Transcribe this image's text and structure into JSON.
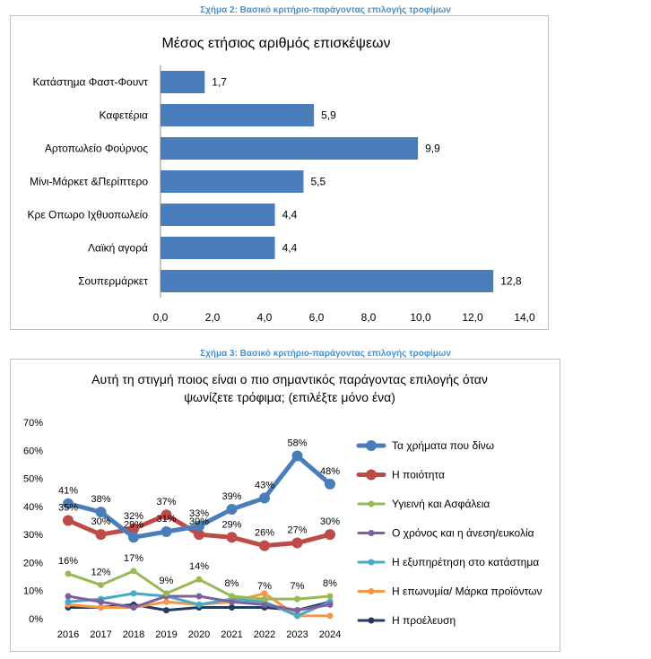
{
  "figure1": {
    "caption": "Σχήμα 2: Βασικό κριτήριο-παράγοντας επιλογής τροφίμων",
    "chart_data": {
      "type": "bar",
      "orientation": "horizontal",
      "title": "Μέσος ετήσιος αριθμός επισκέψεων",
      "categories": [
        "Κατάστημα Φαστ-Φουντ",
        "Καφετέρια",
        "Αρτοπωλείο Φούρνος",
        "Μίνι-Μάρκετ &Περίπτερο",
        "Κρε Οπωρο Ιχθυοπωλείο",
        "Λαϊκή αγορά",
        "Σουπερμάρκετ"
      ],
      "values": [
        1.7,
        5.9,
        9.9,
        5.5,
        4.4,
        4.4,
        12.8
      ],
      "value_labels": [
        "1,7",
        "5,9",
        "9,9",
        "5,5",
        "4,4",
        "4,4",
        "12,8"
      ],
      "xlim": [
        0,
        14
      ],
      "xticks": [
        0,
        2,
        4,
        6,
        8,
        10,
        12,
        14
      ],
      "xtick_labels": [
        "0,0",
        "2,0",
        "4,0",
        "6,0",
        "8,0",
        "10,0",
        "12,0",
        "14,0"
      ],
      "bar_color": "#4a7ebb",
      "grid": false
    }
  },
  "figure2": {
    "caption": "Σχήμα 3: Βασικό κριτήριο-παράγοντας επιλογής τροφίμων",
    "chart_data": {
      "type": "line",
      "title_lines": [
        "Αυτή τη στιγμή ποιος είναι ο πιο σημαντικός παράγοντας επιλογής όταν",
        "ψωνίζετε τρόφιμα; (επιλέξτε μόνο ένα)"
      ],
      "x": [
        "2016",
        "2017",
        "2018",
        "2019",
        "2020",
        "2021",
        "2022",
        "2023",
        "2024"
      ],
      "ylim": [
        0,
        70
      ],
      "yticks": [
        0,
        10,
        20,
        30,
        40,
        50,
        60,
        70
      ],
      "ytick_labels": [
        "0%",
        "10%",
        "20%",
        "30%",
        "40%",
        "50%",
        "60%",
        "70%"
      ],
      "legend_position": "right",
      "grid": false,
      "series": [
        {
          "name": "Τα χρήματα που δίνω",
          "color": "#4a7ebb",
          "width": 5,
          "values": [
            41,
            38,
            29,
            31,
            33,
            39,
            43,
            58,
            48
          ],
          "labels": [
            "41%",
            "38%",
            "29%",
            "31%",
            "33%",
            "39%",
            "43%",
            "58%",
            "48%"
          ]
        },
        {
          "name": "Η ποιότητα",
          "color": "#be4b48",
          "width": 5,
          "values": [
            35,
            30,
            32,
            37,
            30,
            29,
            26,
            27,
            30
          ],
          "labels": [
            "35%",
            "30%",
            "32%",
            "37%",
            "30%",
            "29%",
            "26%",
            "27%",
            "30%"
          ]
        },
        {
          "name": "Υγιεινή και Ασφάλεια",
          "color": "#98b954",
          "width": 3,
          "values": [
            16,
            12,
            17,
            9,
            14,
            8,
            7,
            7,
            8
          ],
          "labels": [
            "16%",
            "12%",
            "17%",
            "9%",
            "14%",
            "8%",
            "7%",
            "7%",
            "8%"
          ]
        },
        {
          "name": "Ο χρόνος και η άνεση/ευκολία",
          "color": "#7d60a0",
          "width": 3,
          "values": [
            8,
            6,
            4,
            8,
            8,
            6,
            5,
            3,
            5
          ]
        },
        {
          "name": "Η εξυπηρέτηση στο κατάστημα",
          "color": "#46aac5",
          "width": 3,
          "values": [
            6,
            7,
            9,
            8,
            5,
            7,
            6,
            1,
            6
          ]
        },
        {
          "name": "Η επωνυμία/ Μάρκα προϊόντων",
          "color": "#f79646",
          "width": 3,
          "values": [
            5,
            4,
            4,
            6,
            5,
            6,
            9,
            1,
            1
          ]
        },
        {
          "name": "Η προέλευση",
          "color": "#243c60",
          "width": 3,
          "values": [
            4,
            4,
            5,
            3,
            4,
            4,
            4,
            3,
            6
          ]
        }
      ]
    }
  }
}
